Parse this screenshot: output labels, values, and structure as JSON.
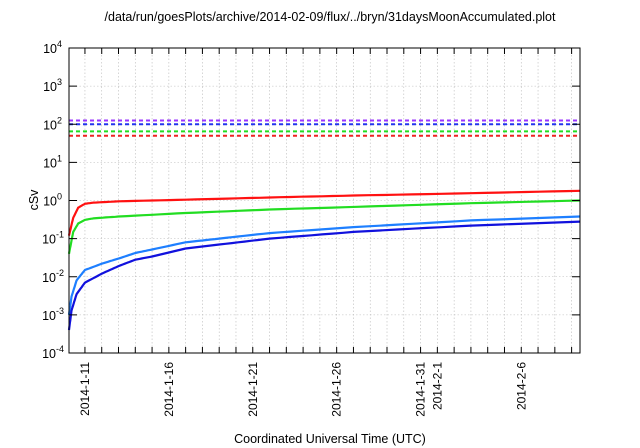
{
  "chart_data": {
    "type": "line",
    "title": "/data/run/goesPlots/archive/2014-02-09/flux/../bryn/31daysMoonAccumulated.plot",
    "xlabel": "Coordinated Universal Time (UTC)",
    "ylabel": "cSv",
    "x_units": "days since 2014-01-10 00:00 UTC",
    "xlim": [
      0.05,
      30.5
    ],
    "ylim": [
      0.0001,
      10000
    ],
    "yscale": "log",
    "grid": true,
    "x_ticks": [
      {
        "x": 1,
        "label": "2014-1-11"
      },
      {
        "x": 6,
        "label": "2014-1-16"
      },
      {
        "x": 11,
        "label": "2014-1-21"
      },
      {
        "x": 16,
        "label": "2014-1-26"
      },
      {
        "x": 21,
        "label": "2014-1-31"
      },
      {
        "x": 22,
        "label": "2014-2-1"
      },
      {
        "x": 27,
        "label": "2014-2-6"
      }
    ],
    "y_ticks": [
      {
        "y": 0.0001,
        "base": "10",
        "exp": "-4"
      },
      {
        "y": 0.001,
        "base": "10",
        "exp": "-3"
      },
      {
        "y": 0.01,
        "base": "10",
        "exp": "-2"
      },
      {
        "y": 0.1,
        "base": "10",
        "exp": "-1"
      },
      {
        "y": 1,
        "base": "10",
        "exp": "0"
      },
      {
        "y": 10,
        "base": "10",
        "exp": "1"
      },
      {
        "y": 100,
        "base": "10",
        "exp": "2"
      },
      {
        "y": 1000,
        "base": "10",
        "exp": "3"
      },
      {
        "y": 10000,
        "base": "10",
        "exp": "4"
      }
    ],
    "thresholds": [
      {
        "color": "#9933ff",
        "value": 125
      },
      {
        "color": "#2233ee",
        "value": 100
      },
      {
        "color": "#22dd22",
        "value": 65
      },
      {
        "color": "#ee2222",
        "value": 50
      }
    ],
    "series": [
      {
        "color": "#ff1111",
        "x": [
          0.05,
          0.3,
          0.6,
          1,
          1.5,
          3,
          7,
          12,
          17,
          24,
          30.5
        ],
        "y": [
          0.12,
          0.35,
          0.65,
          0.82,
          0.88,
          0.95,
          1.05,
          1.2,
          1.35,
          1.55,
          1.8
        ]
      },
      {
        "color": "#22dd22",
        "x": [
          0.05,
          0.3,
          0.6,
          1,
          1.5,
          3,
          7,
          12,
          18,
          24,
          30.5
        ],
        "y": [
          0.04,
          0.15,
          0.25,
          0.31,
          0.34,
          0.38,
          0.47,
          0.58,
          0.7,
          0.85,
          1.0
        ]
      },
      {
        "color": "#1e7fff",
        "x": [
          0.05,
          0.2,
          0.5,
          1,
          2,
          3,
          4,
          5,
          7,
          9,
          12,
          17,
          24,
          30.5
        ],
        "y": [
          0.001,
          0.003,
          0.008,
          0.015,
          0.022,
          0.03,
          0.042,
          0.052,
          0.08,
          0.1,
          0.14,
          0.2,
          0.3,
          0.38
        ]
      },
      {
        "color": "#1111dd",
        "x": [
          0.05,
          0.2,
          0.5,
          1,
          2,
          3,
          4,
          5,
          7,
          9,
          12,
          17,
          24,
          30.5
        ],
        "y": [
          0.0004,
          0.0013,
          0.0035,
          0.007,
          0.012,
          0.019,
          0.028,
          0.034,
          0.055,
          0.07,
          0.1,
          0.15,
          0.22,
          0.28
        ]
      }
    ]
  }
}
